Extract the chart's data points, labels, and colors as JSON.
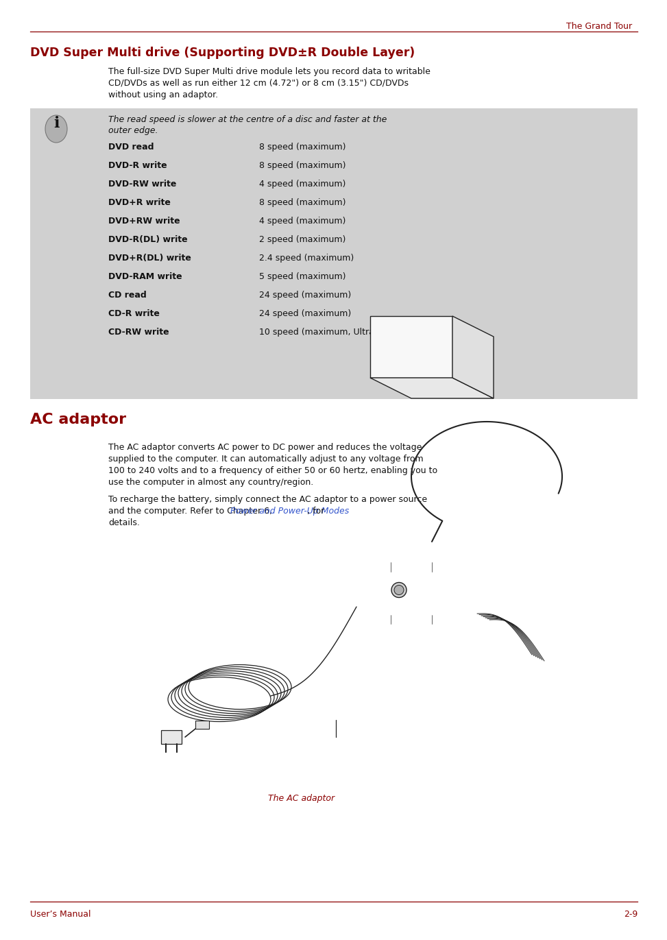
{
  "page_title": "The Grand Tour",
  "section1_title": "DVD Super Multi drive (Supporting DVD±R Double Layer)",
  "section1_body_lines": [
    "The full-size DVD Super Multi drive module lets you record data to writable",
    "CD/DVDs as well as run either 12 cm (4.72\") or 8 cm (3.15\") CD/DVDs",
    "without using an adaptor."
  ],
  "info_italic_lines": [
    "The read speed is slower at the centre of a disc and faster at the",
    "outer edge."
  ],
  "table_rows": [
    [
      "DVD read",
      "8 speed (maximum)"
    ],
    [
      "DVD-R write",
      "8 speed (maximum)"
    ],
    [
      "DVD-RW write",
      "4 speed (maximum)"
    ],
    [
      "DVD+R write",
      "8 speed (maximum)"
    ],
    [
      "DVD+RW write",
      "4 speed (maximum)"
    ],
    [
      "DVD-R(DL) write",
      "2 speed (maximum)"
    ],
    [
      "DVD+R(DL) write",
      "2.4 speed (maximum)"
    ],
    [
      "DVD-RAM write",
      "5 speed (maximum)"
    ],
    [
      "CD read",
      "24 speed (maximum)"
    ],
    [
      "CD-R write",
      "24 speed (maximum)"
    ],
    [
      "CD-RW write",
      "10 speed (maximum, Ultra-speed media)"
    ]
  ],
  "section2_title": "AC adaptor",
  "section2_body1_lines": [
    "The AC adaptor converts AC power to DC power and reduces the voltage",
    "supplied to the computer. It can automatically adjust to any voltage from",
    "100 to 240 volts and to a frequency of either 50 or 60 hertz, enabling you to",
    "use the computer in almost any country/region."
  ],
  "section2_body2_pre": "To recharge the battery, simply connect the AC adaptor to a power source",
  "section2_body2_line2_pre": "and the computer. Refer to Chapter 6, ",
  "section2_link": "Power and Power-Up Modes",
  "section2_body2_line2_post": ", for",
  "section2_body2_line3": "details.",
  "image_caption": "The AC adaptor",
  "footer_left": "User’s Manual",
  "footer_right": "2-9",
  "bg_color": "#ffffff",
  "header_color": "#8b0000",
  "section_title_color": "#8b0000",
  "table_bg_color": "#d0d0d0",
  "link_color": "#3355cc",
  "body_text_color": "#111111",
  "line_color": "#8b0000",
  "draw_color": "#222222"
}
